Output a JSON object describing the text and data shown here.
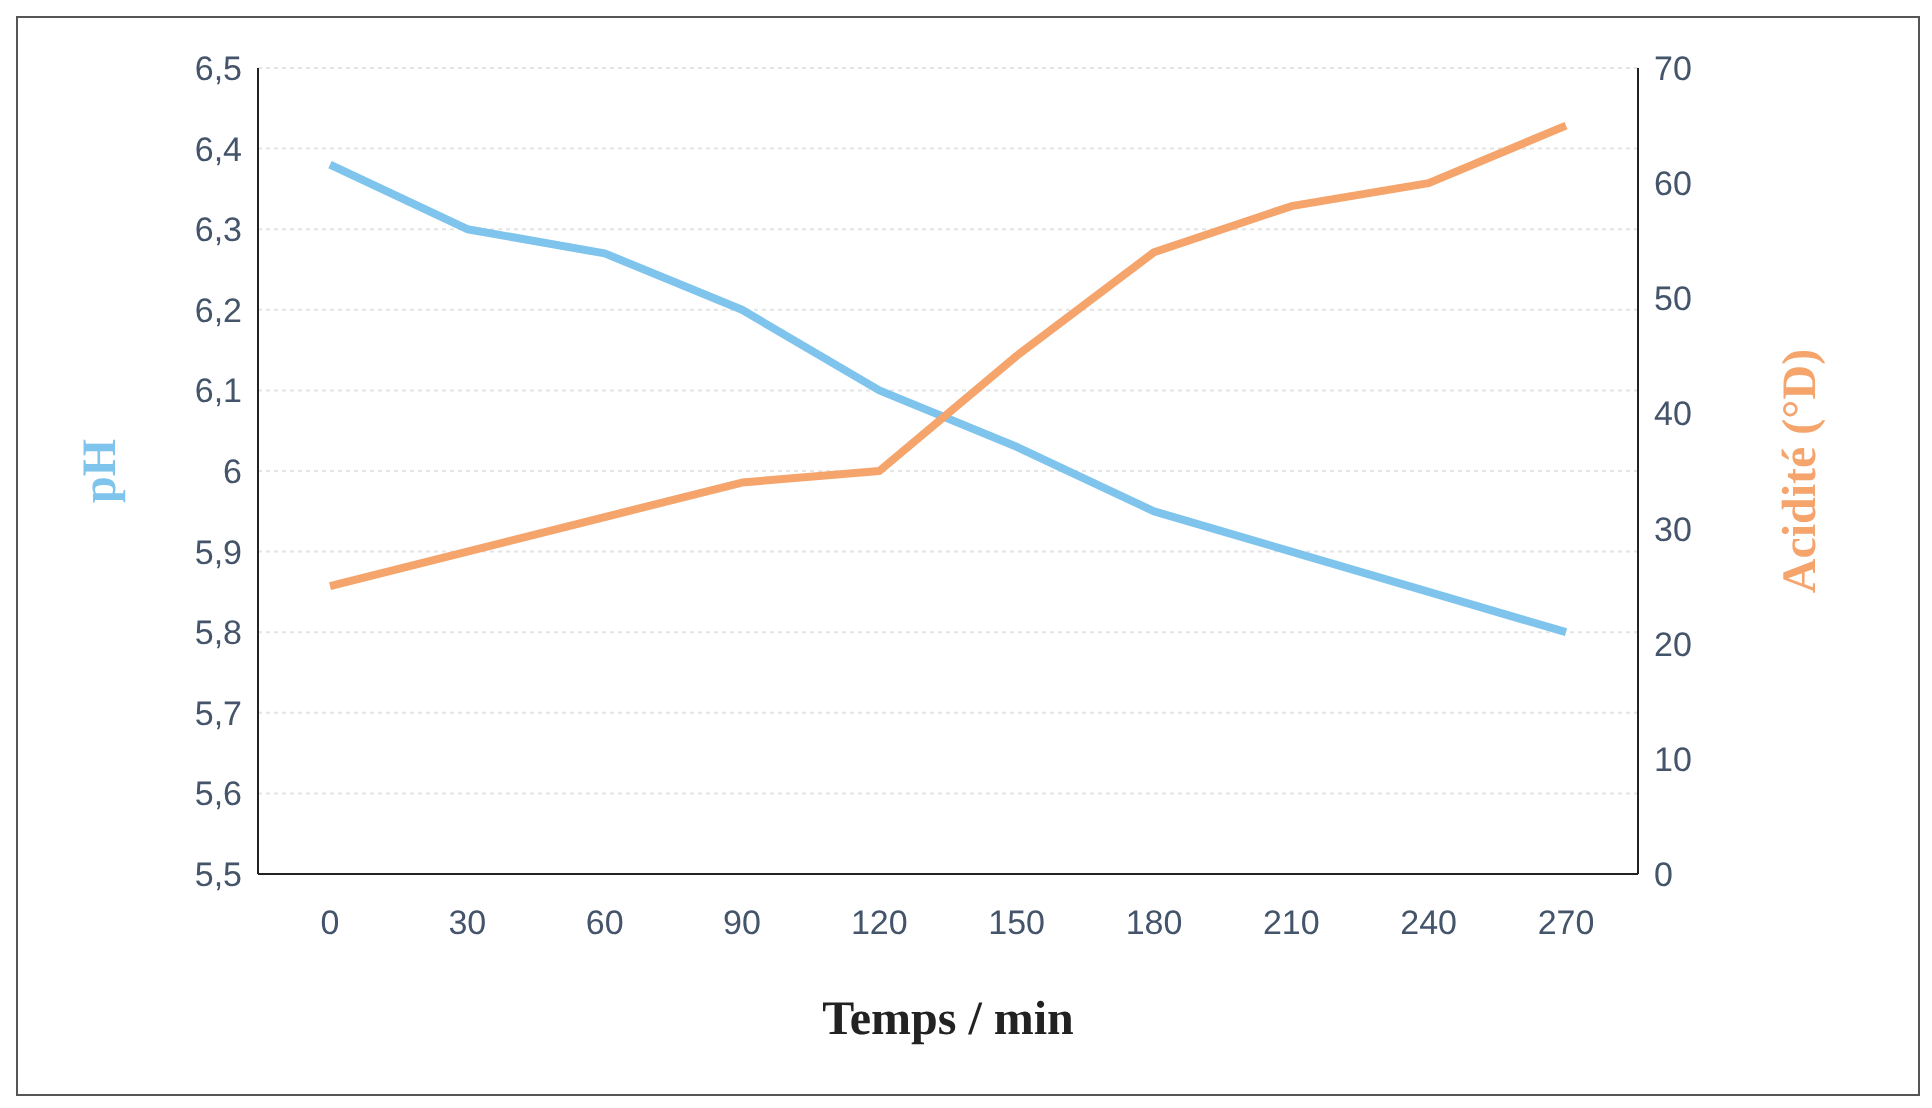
{
  "chart_data": {
    "type": "line",
    "xlabel": "Temps / min",
    "ylabel": "pH",
    "y2label": "Acidité (°D)",
    "categories": [
      "0",
      "30",
      "60",
      "90",
      "120",
      "150",
      "180",
      "210",
      "240",
      "270"
    ],
    "series": [
      {
        "color": "#7fc4ec",
        "values": [
          6.38,
          6.3,
          6.27,
          6.2,
          6.1,
          6.03,
          5.95,
          5.9,
          5.85,
          5.8
        ]
      },
      {
        "color": "#f5a46c",
        "axis": "y2",
        "values": [
          25,
          28,
          31,
          34,
          35,
          45,
          54,
          58,
          60,
          65
        ]
      }
    ],
    "ylim": [
      5.5,
      6.5
    ],
    "yticks": [
      {
        "value": 5.5,
        "label": "5,5"
      },
      {
        "value": 5.6,
        "label": "5,6"
      },
      {
        "value": 5.7,
        "label": "5,7"
      },
      {
        "value": 5.8,
        "label": "5,8"
      },
      {
        "value": 5.9,
        "label": "5,9"
      },
      {
        "value": 6,
        "label": "6"
      },
      {
        "value": 6.1,
        "label": "6,1"
      },
      {
        "value": 6.2,
        "label": "6,2"
      },
      {
        "value": 6.3,
        "label": "6,3"
      },
      {
        "value": 6.4,
        "label": "6,4"
      },
      {
        "value": 6.5,
        "label": "6,5"
      }
    ],
    "y2lim": [
      0,
      70
    ],
    "y2ticks": [
      0,
      10,
      20,
      30,
      40,
      50,
      60,
      70
    ],
    "grid": "y",
    "legend": false,
    "marker": "none",
    "line_style": "solid"
  }
}
